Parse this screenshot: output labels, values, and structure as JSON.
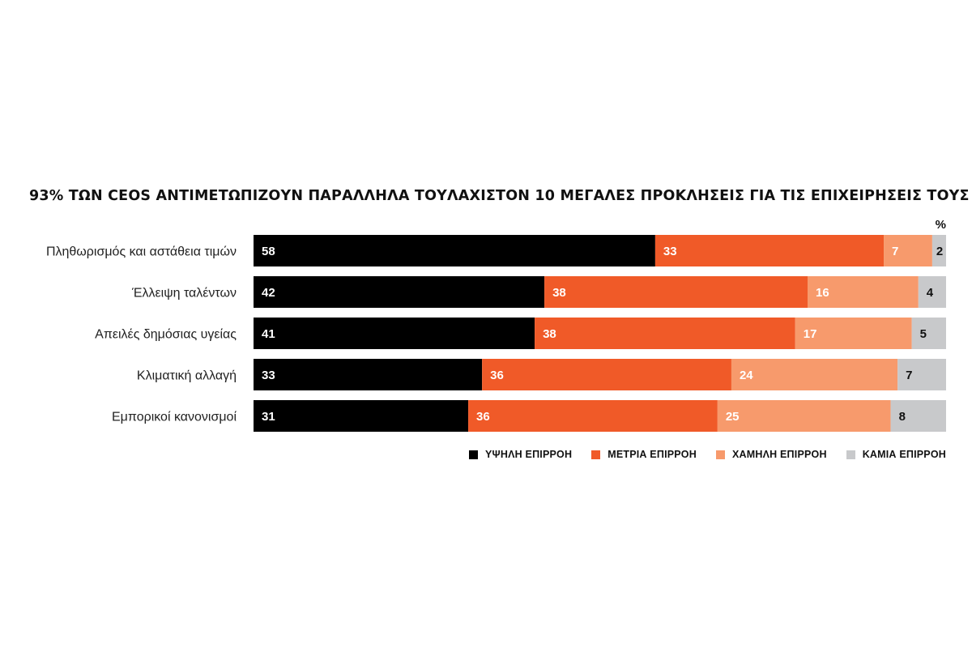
{
  "chart_data": {
    "type": "stacked-bar-horizontal",
    "title": "93% ΤΩΝ CEOS ΑΝΤΙΜΕΤΩΠΙΖΟΥΝ ΠΑΡΑΛΛΗΛΑ ΤΟΥΛΑΧΙΣΤΟΝ 10 ΜΕΓΑΛΕΣ ΠΡΟΚΛΗΣΕΙΣ ΓΙΑ ΤΙΣ ΕΠΙΧΕΙΡΗΣΕΙΣ ΤΟΥΣ",
    "unit": "%",
    "categories": [
      "Πληθωρισμός και αστάθεια τιμών",
      "Έλλειψη ταλέντων",
      "Απειλές δημόσιας υγείας",
      "Κλιματική αλλαγή",
      "Εμπορικοί κανονισμοί"
    ],
    "series": [
      {
        "name": "ΥΨΗΛΗ ΕΠΙΡΡΟΗ",
        "color": "#000000",
        "label_color": "#ffffff",
        "values": [
          58,
          42,
          41,
          33,
          31
        ]
      },
      {
        "name": "ΜΕΤΡΙΑ ΕΠΙΡΡΟΗ",
        "color": "#f05a28",
        "label_color": "#ffffff",
        "values": [
          33,
          38,
          38,
          36,
          36
        ]
      },
      {
        "name": "ΧΑΜΗΛΗ ΕΠΙΡΡΟΗ",
        "color": "#f79a6c",
        "label_color": "#ffffff",
        "values": [
          7,
          16,
          17,
          24,
          25
        ]
      },
      {
        "name": "ΚΑΜΙΑ ΕΠΙΡΡΟΗ",
        "color": "#c8c9cb",
        "label_color": "#111111",
        "values": [
          2,
          4,
          5,
          7,
          8
        ]
      }
    ],
    "legend_position": "bottom-right",
    "grid": false
  }
}
